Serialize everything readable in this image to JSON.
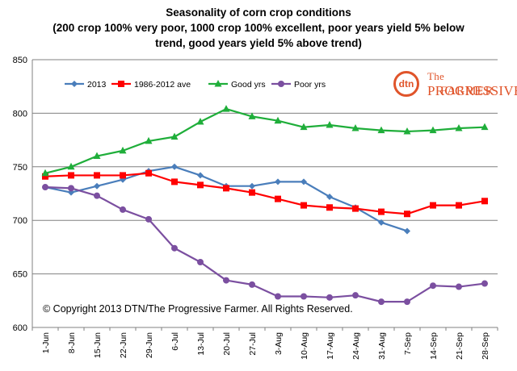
{
  "page": {
    "title_lines": [
      "Seasonality of corn crop conditions",
      "(200 crop 100%  very poor, 1000 crop 100% excellent, poor years yield 5% below",
      "trend, good years yield 5% above trend)"
    ],
    "copyright": "© Copyright 2013 DTN/The Progressive Farmer. All Rights Reserved.",
    "logo": {
      "mark": "dtn",
      "line1": "The Progressive",
      "line2": "Farmer",
      "color": "#e0542a"
    }
  },
  "chart_data": {
    "type": "line",
    "title": "Seasonality of corn crop conditions",
    "categories": [
      "1-Jun",
      "8-Jun",
      "15-Jun",
      "22-Jun",
      "29-Jun",
      "6-Jul",
      "13-Jul",
      "20-Jul",
      "27-Jul",
      "3-Aug",
      "10-Aug",
      "17-Aug",
      "24-Aug",
      "31-Aug",
      "7-Sep",
      "14-Sep",
      "21-Sep",
      "28-Sep"
    ],
    "ylim": [
      600,
      850
    ],
    "yticks": [
      600,
      650,
      700,
      750,
      800,
      850
    ],
    "grid": "horizontal",
    "legend": "top",
    "series": [
      {
        "name": "2013",
        "color": "#4a7ebb",
        "marker": "diamond",
        "values": [
          731,
          726,
          732,
          738,
          746,
          750,
          742,
          732,
          732,
          736,
          736,
          722,
          712,
          698,
          690,
          null,
          null,
          null
        ]
      },
      {
        "name": "1986-2012 ave",
        "color": "#ff0000",
        "marker": "square",
        "values": [
          741,
          742,
          742,
          742,
          744,
          736,
          733,
          730,
          726,
          720,
          714,
          712,
          711,
          708,
          706,
          714,
          714,
          718
        ]
      },
      {
        "name": "Good yrs",
        "color": "#1fae3a",
        "marker": "triangle",
        "values": [
          744,
          750,
          760,
          765,
          774,
          778,
          792,
          804,
          797,
          793,
          787,
          789,
          786,
          784,
          783,
          784,
          786,
          787
        ]
      },
      {
        "name": "Poor yrs",
        "color": "#7b4fa0",
        "marker": "circle",
        "values": [
          731,
          730,
          723,
          710,
          701,
          674,
          661,
          644,
          640,
          629,
          629,
          628,
          630,
          624,
          624,
          639,
          638,
          641
        ]
      }
    ]
  }
}
